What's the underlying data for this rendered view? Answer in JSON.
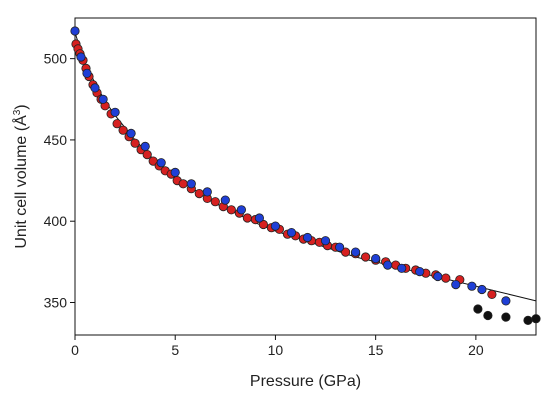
{
  "chart_data": {
    "type": "scatter",
    "xlabel": "Pressure (GPa)",
    "ylabel_main": "Unit cell volume (Å",
    "ylabel_sup": "3",
    "ylabel_close": ")",
    "xlim": [
      0,
      23
    ],
    "ylim": [
      330,
      525
    ],
    "xticks": [
      0,
      5,
      10,
      15,
      20
    ],
    "yticks": [
      350,
      400,
      450,
      500
    ],
    "colors": {
      "red": "#d62020",
      "blue": "#1f3fd6",
      "black": "#111111"
    },
    "fit_curve": {
      "x": [
        0,
        0.5,
        1,
        1.5,
        2,
        3,
        4,
        5,
        6,
        7,
        8,
        9,
        10,
        11,
        12,
        13,
        14,
        15,
        16,
        17,
        18,
        19,
        20,
        21,
        22,
        23
      ],
      "y": [
        516,
        497,
        485,
        474,
        465,
        450,
        437,
        427,
        419,
        411,
        405,
        399,
        394,
        390,
        386,
        382,
        378,
        375,
        372,
        369,
        366,
        363,
        360,
        357,
        354,
        351
      ]
    },
    "series": [
      {
        "color": "red",
        "x": [
          0.05,
          0.15,
          0.25,
          0.4,
          0.55,
          0.7,
          0.9,
          1.1,
          1.3,
          1.5,
          1.8,
          2.1,
          2.4,
          2.7,
          3.0,
          3.3,
          3.6,
          3.9,
          4.2,
          4.5,
          4.8,
          5.1,
          5.4,
          5.8,
          6.2,
          6.6,
          7.0,
          7.4,
          7.8,
          8.2,
          8.6,
          9.0,
          9.4,
          9.8,
          10.2,
          10.6,
          11.0,
          11.4,
          11.8,
          12.2,
          12.6,
          13.0,
          13.5,
          14.0,
          14.5,
          15.0,
          15.5,
          16.0,
          16.5,
          17.0,
          17.5,
          18.0,
          18.5,
          19.2,
          20.8
        ],
        "y": [
          509,
          506,
          503,
          499,
          494,
          489,
          484,
          479,
          475,
          471,
          466,
          460,
          456,
          452,
          448,
          444,
          441,
          437,
          434,
          431,
          429,
          425,
          423,
          420,
          417,
          414,
          412,
          409,
          407,
          405,
          402,
          401,
          398,
          396,
          395,
          392,
          391,
          389,
          388,
          387,
          385,
          384,
          381,
          380,
          378,
          376,
          375,
          373,
          371,
          370,
          368,
          367,
          365,
          364,
          355
        ]
      },
      {
        "color": "blue",
        "x": [
          0,
          0.3,
          0.6,
          1.0,
          1.4,
          2.0,
          2.8,
          3.5,
          4.3,
          5.0,
          5.8,
          6.6,
          7.5,
          8.3,
          9.2,
          10.0,
          10.8,
          11.6,
          12.5,
          13.2,
          14.0,
          15.0,
          15.6,
          16.3,
          17.2,
          18.1,
          19.0,
          19.8,
          20.3,
          21.5
        ],
        "y": [
          517,
          501,
          491,
          482,
          475,
          467,
          454,
          446,
          436,
          430,
          423,
          418,
          413,
          407,
          402,
          397,
          393,
          390,
          388,
          384,
          381,
          377,
          373,
          371,
          369,
          366,
          361,
          360,
          358,
          351
        ]
      },
      {
        "color": "black",
        "x": [
          20.1,
          20.6,
          21.5,
          22.6,
          23.0
        ],
        "y": [
          346,
          342,
          341,
          339,
          340
        ]
      }
    ]
  }
}
